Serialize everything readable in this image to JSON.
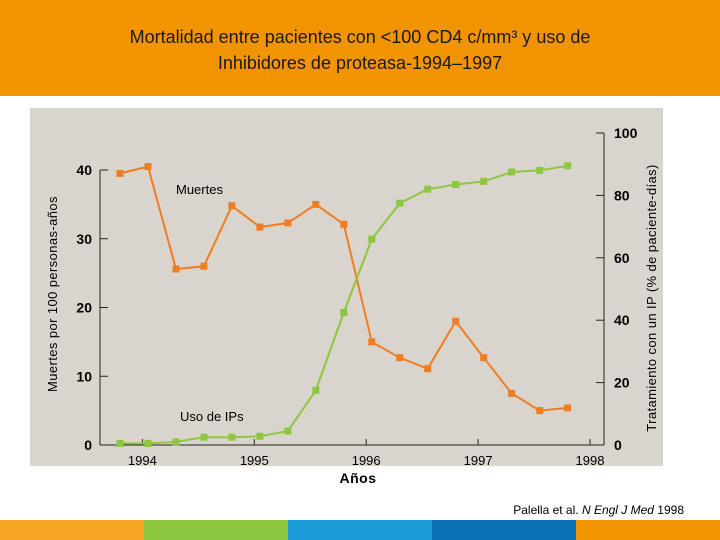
{
  "header": {
    "title_line1": "Mortalidad entre pacientes con <100 CD4 c/mm³ y uso de",
    "title_line2": "Inhibidores de proteasa-1994–1997",
    "background_color": "#f29400"
  },
  "citation": {
    "prefix": "Palella et al. ",
    "journal": "N Engl J Med",
    "year": " 1998"
  },
  "bottom_bar_colors": [
    "#f6a623",
    "#8dc63f",
    "#1a9ad6",
    "#0a6fb5",
    "#f29400"
  ],
  "chart_data": {
    "type": "line",
    "background_color": "#d9d5cc",
    "xlabel": "Años",
    "x_ticks": [
      "1994",
      "1995",
      "1996",
      "1997",
      "1998"
    ],
    "x_tick_values": [
      1994,
      1995,
      1996,
      1997,
      1998
    ],
    "xlim": [
      1993.8,
      1998
    ],
    "y_left": {
      "label": "Muertes por 100 personas-años",
      "ticks": [
        "0",
        "10",
        "20",
        "30",
        "40"
      ],
      "tick_values": [
        0,
        10,
        20,
        30,
        40
      ],
      "lim": [
        0,
        40
      ]
    },
    "y_right": {
      "label": "Tratamiento con un IP (% de paciente-días)",
      "ticks": [
        "0",
        "20",
        "40",
        "60",
        "80",
        "100"
      ],
      "tick_values": [
        0,
        20,
        40,
        60,
        80,
        100
      ],
      "lim": [
        0,
        100
      ]
    },
    "series": [
      {
        "name": "Muertes",
        "axis": "left",
        "color": "#f07d22",
        "marker": "square",
        "x": [
          1993.8,
          1994.05,
          1994.3,
          1994.55,
          1994.8,
          1995.05,
          1995.3,
          1995.55,
          1995.8,
          1996.05,
          1996.3,
          1996.55,
          1996.8,
          1997.05,
          1997.3,
          1997.55,
          1997.8
        ],
        "values": [
          39.5,
          40.5,
          25.6,
          26.0,
          34.8,
          31.7,
          32.3,
          35.0,
          32.1,
          15.0,
          12.7,
          11.1,
          18.0,
          12.7,
          7.5,
          5.0,
          5.4
        ]
      },
      {
        "name": "Uso de IPs",
        "axis": "right",
        "color": "#8dc63f",
        "marker": "square",
        "x": [
          1993.8,
          1994.05,
          1994.3,
          1994.55,
          1994.8,
          1995.05,
          1995.3,
          1995.55,
          1995.8,
          1996.05,
          1996.3,
          1996.55,
          1996.8,
          1997.05,
          1997.3,
          1997.55,
          1997.8
        ],
        "values": [
          0.5,
          0.5,
          1.0,
          2.5,
          2.5,
          2.8,
          4.5,
          17.5,
          42.5,
          66.0,
          77.5,
          82.0,
          83.5,
          84.5,
          87.5,
          88.0,
          89.5
        ]
      }
    ]
  }
}
